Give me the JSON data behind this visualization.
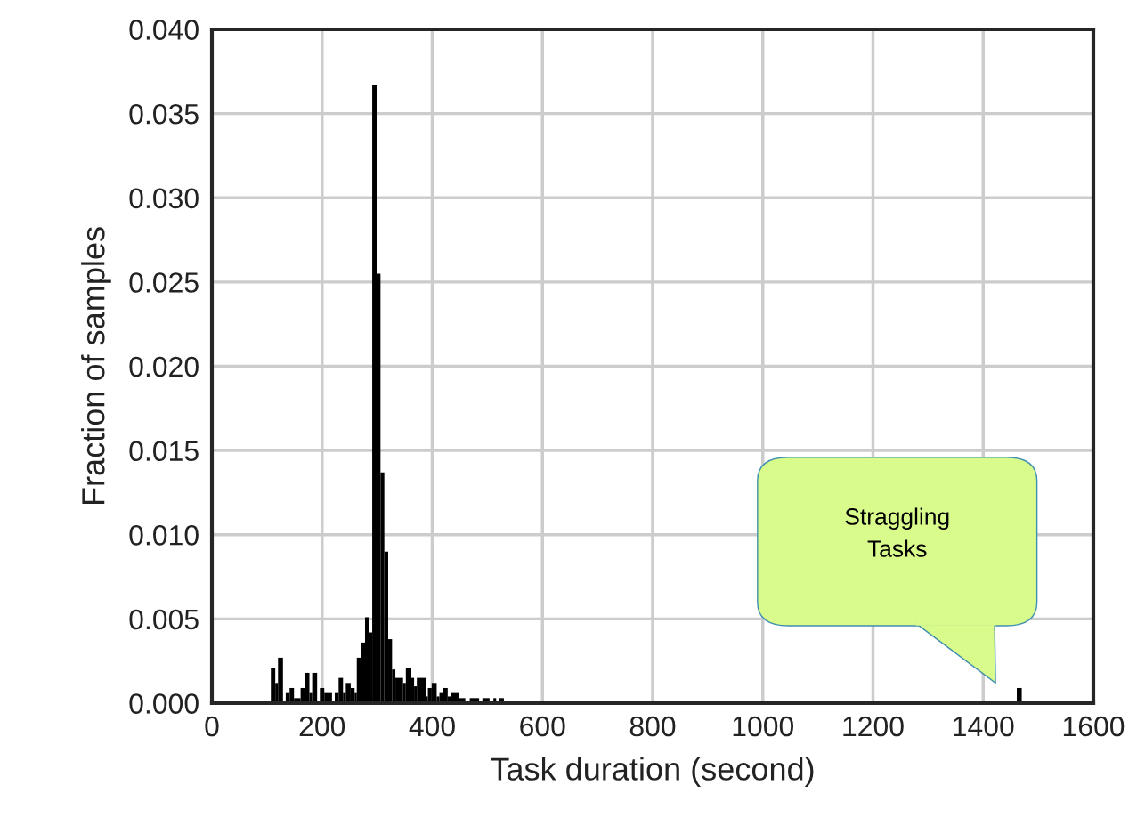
{
  "chart_data": {
    "type": "histogram",
    "xlabel": "Task duration (second)",
    "ylabel": "Fraction of samples",
    "bins": [
      107,
      115,
      120,
      129,
      134,
      141,
      149,
      161,
      169,
      177,
      182,
      191,
      196,
      204,
      218,
      223,
      230,
      238,
      243,
      252,
      259,
      263,
      270,
      278,
      286,
      291,
      299,
      306,
      313,
      320,
      327,
      333,
      347,
      352,
      362,
      367,
      372,
      388,
      392,
      399,
      408,
      413,
      420,
      428,
      434,
      449,
      460,
      468,
      485,
      491,
      504,
      511,
      516,
      522,
      530,
      1461,
      1470
    ],
    "values": [
      0.0021,
      0.0012,
      0.0027,
      0,
      0.0006,
      0.0009,
      0.0003,
      0.0009,
      0.0018,
      0.0006,
      0.0018,
      0,
      0.0009,
      0.0006,
      0,
      0.0006,
      0.0015,
      0.0006,
      0.0012,
      0.0009,
      0.0006,
      0.0027,
      0.0036,
      0.0051,
      0.0042,
      0.0367,
      0.0255,
      0.0137,
      0.009,
      0.0038,
      0.002,
      0.0015,
      0.0012,
      0.0021,
      0.0015,
      0.001,
      0.0015,
      0.0004,
      0.0009,
      0.0012,
      0.0004,
      0.0006,
      0.0009,
      0.0004,
      0.0006,
      0.0003,
      0,
      0.0003,
      0,
      0.0003,
      0,
      0.0003,
      0,
      0.0003,
      0,
      0.0009
    ],
    "color": "#000000",
    "xlim": [
      0,
      1600
    ],
    "xticks": [
      0,
      200,
      400,
      600,
      800,
      1000,
      1200,
      1400,
      1600
    ],
    "ylim": [
      0,
      0.04
    ],
    "yticks": [
      {
        "value": 0,
        "label": "0.000"
      },
      {
        "value": 0.005,
        "label": "0.005"
      },
      {
        "value": 0.01,
        "label": "0.010"
      },
      {
        "value": 0.015,
        "label": "0.015"
      },
      {
        "value": 0.02,
        "label": "0.020"
      },
      {
        "value": 0.025,
        "label": "0.025"
      },
      {
        "value": 0.03,
        "label": "0.030"
      },
      {
        "value": 0.035,
        "label": "0.035"
      },
      {
        "value": 0.04,
        "label": "0.040"
      }
    ],
    "grid": true,
    "annotations": [
      "Straggling\nTasks"
    ]
  }
}
